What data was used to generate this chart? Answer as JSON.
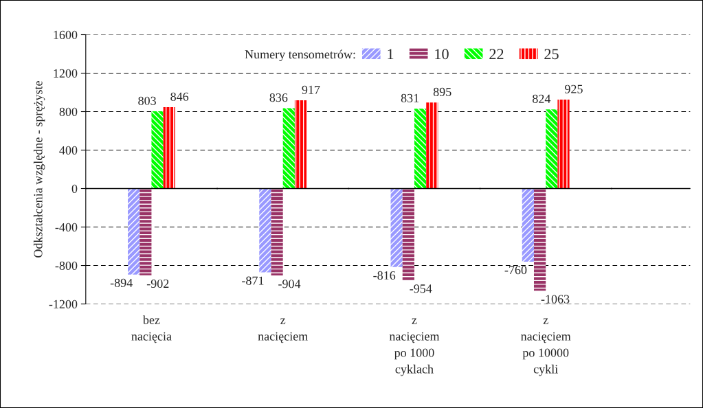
{
  "chart_data": {
    "type": "bar",
    "ylabel": "Odkształcenia względne - sprężyste",
    "legend_title": "Numery tensometrów:",
    "categories": [
      "bez\nnacięcia",
      "z\nnacięciem",
      "z\nnacięciem\npo 1000\ncyklach",
      "z\nnacięciem\npo 10000\ncykli"
    ],
    "series": [
      {
        "name": "1",
        "color": "#9999ff",
        "values": [
          -894,
          -871,
          -816,
          -760
        ]
      },
      {
        "name": "10",
        "color": "#993366",
        "values": [
          -902,
          -904,
          -954,
          -1063
        ]
      },
      {
        "name": "22",
        "color": "#00ff00",
        "values": [
          803,
          836,
          831,
          824
        ]
      },
      {
        "name": "25",
        "color": "#ff0000",
        "values": [
          846,
          917,
          895,
          925
        ]
      }
    ],
    "ylim": [
      -1200,
      1600
    ],
    "yticks": [
      -1200,
      -800,
      -400,
      0,
      400,
      800,
      1200,
      1600
    ],
    "grid": "y",
    "legend": "top",
    "data_labels": true
  }
}
